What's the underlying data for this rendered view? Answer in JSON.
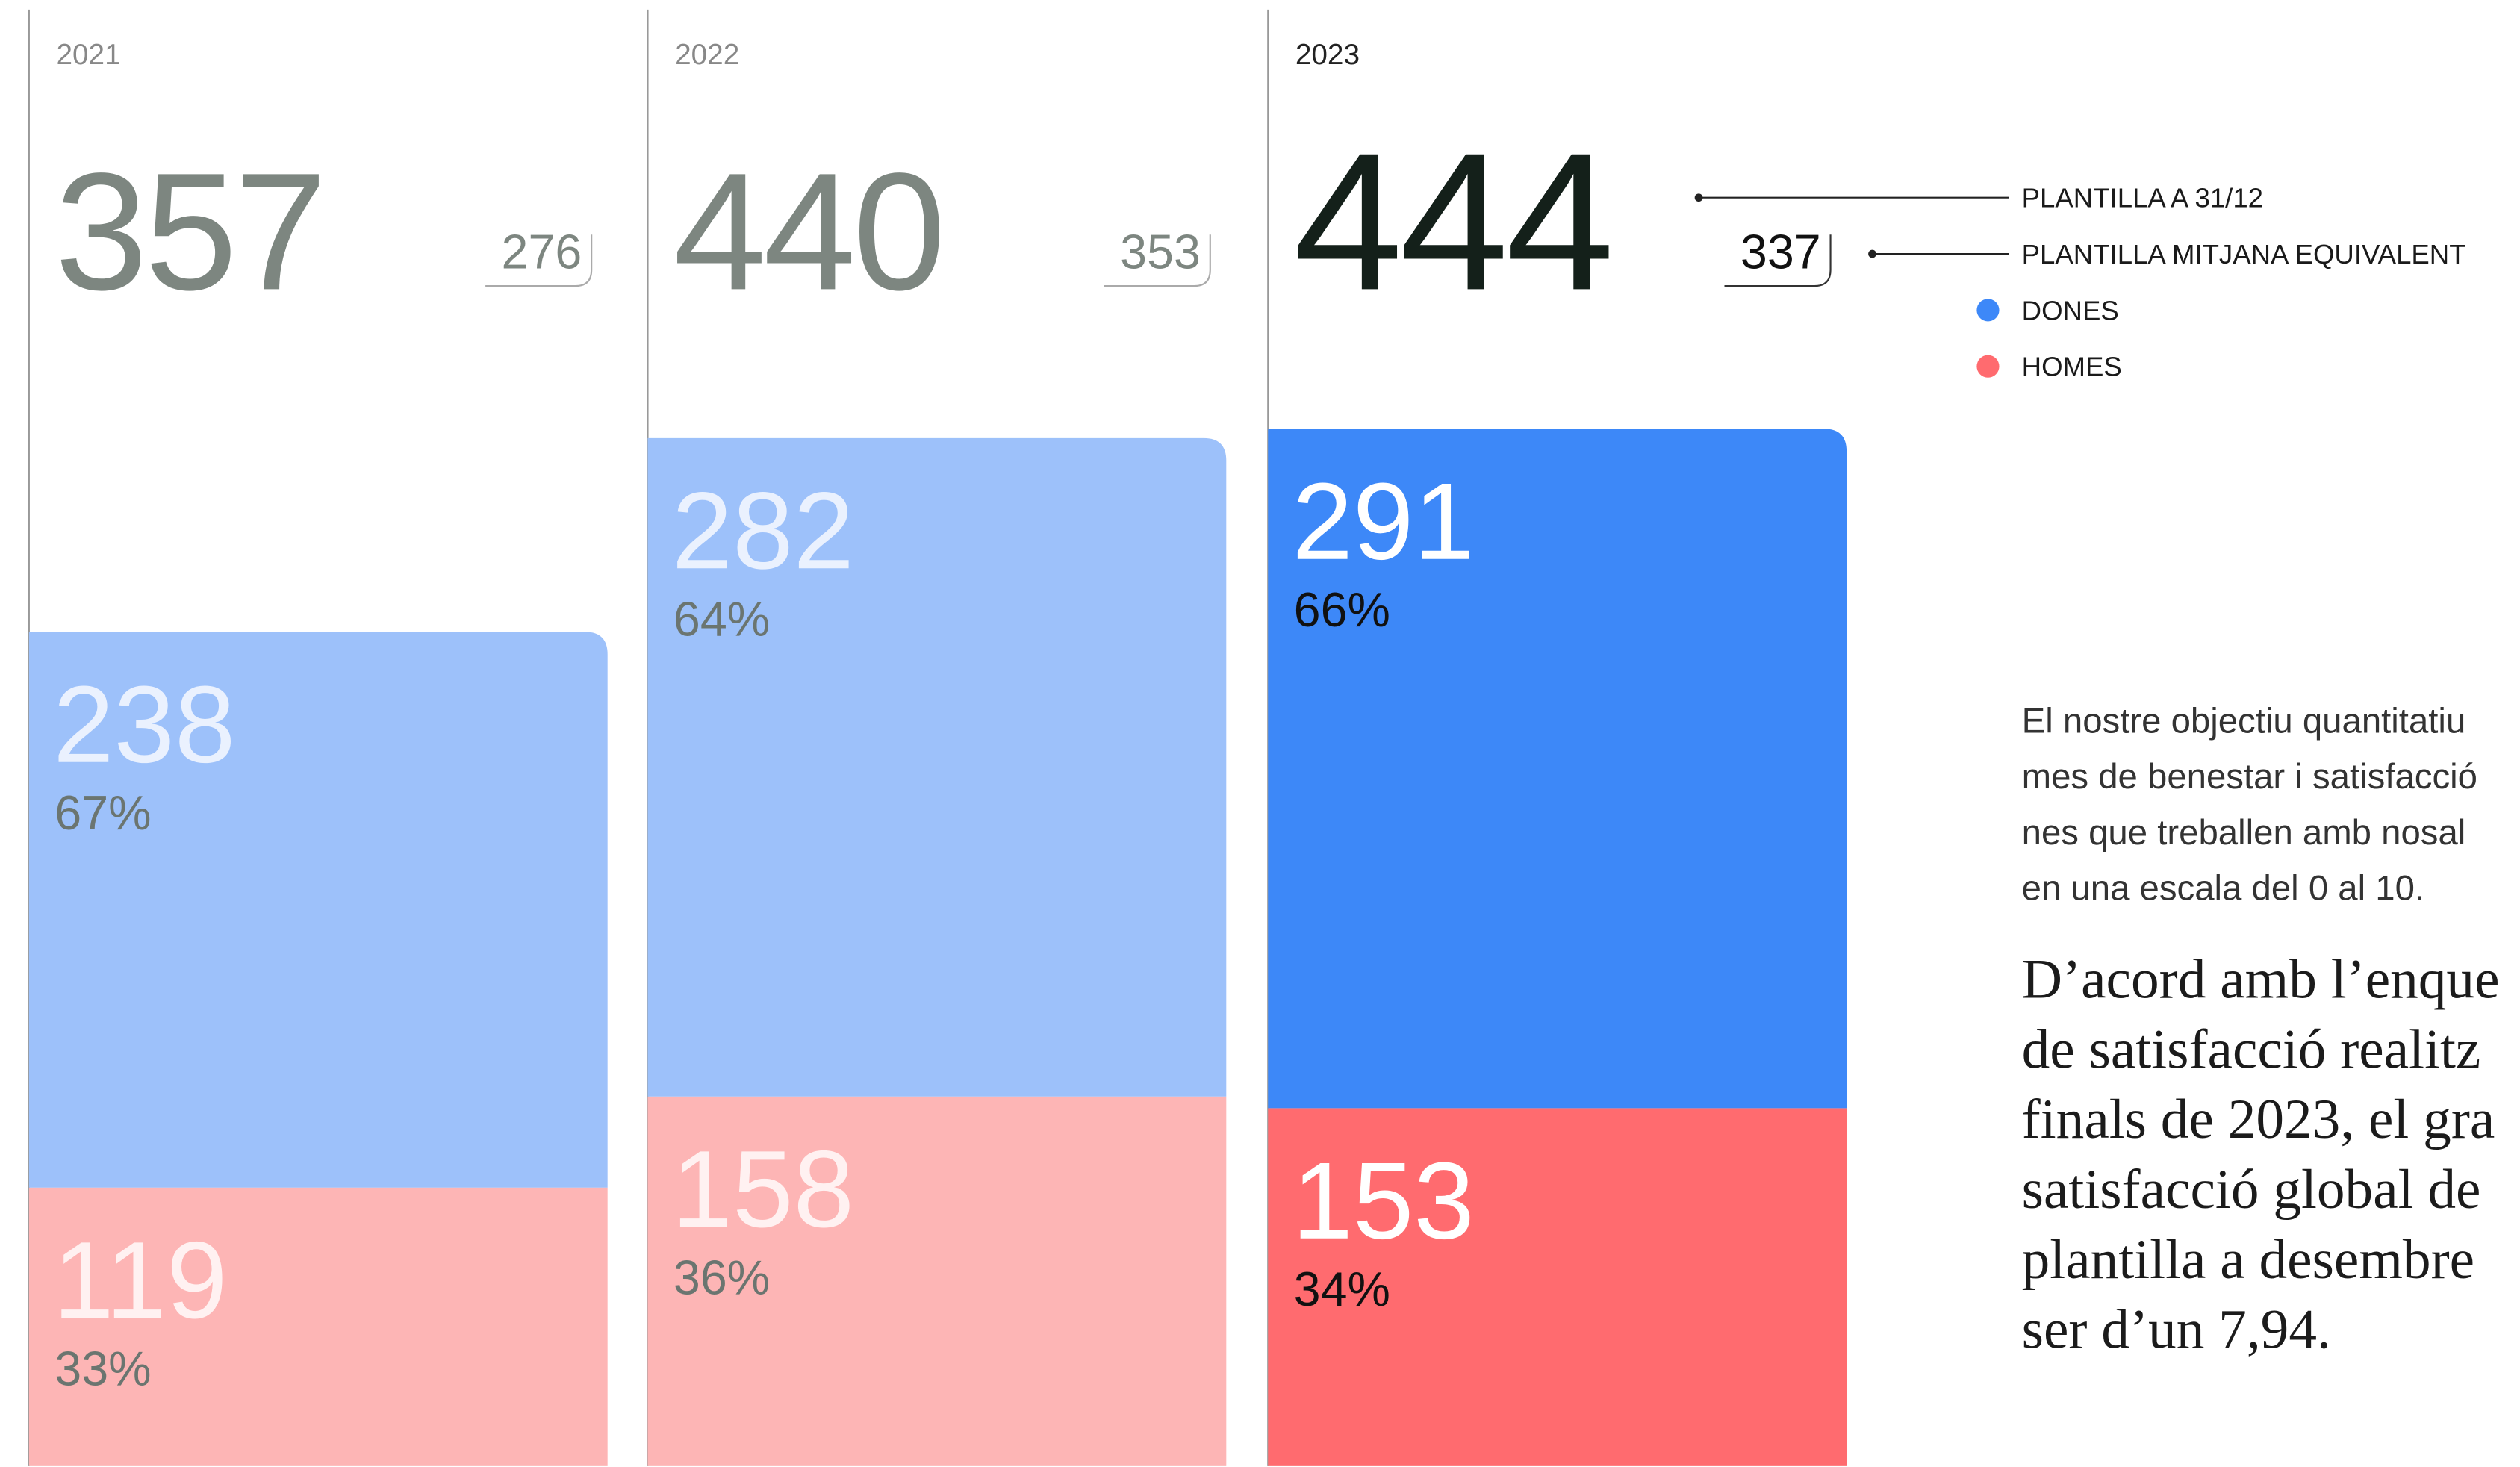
{
  "chart_data": {
    "type": "stacked-bar",
    "categories": [
      "2021",
      "2022",
      "2023"
    ],
    "highlight": 2,
    "totals": [
      357,
      440,
      444
    ],
    "average_staff": [
      276,
      353,
      337
    ],
    "totals_label": "PLANTILLA A 31/12",
    "average_staff_label": "PLANTILLA MITJANA EQUIVALENT",
    "series": [
      {
        "name": "DONES",
        "color": "#3d88f8",
        "faded_color": "#9dc1fa",
        "values": [
          238,
          282,
          291
        ],
        "percent_labels": [
          "67%",
          "64%",
          "66%"
        ]
      },
      {
        "name": "HOMES",
        "color": "#ff6b6f",
        "faded_color": "#fdb5b5",
        "values": [
          119,
          158,
          153
        ],
        "percent_labels": [
          "33%",
          "36%",
          "34%"
        ]
      }
    ]
  },
  "text": {
    "intro": [
      "El nostre objectiu quantitatiu",
      "mes de benestar i satisfacció",
      "nes que treballen amb nosal",
      "en una escala del 0 al 10."
    ],
    "quote": [
      "D’acord amb l’enque",
      "de satisfacció realitz",
      "finals de 2023, el gra",
      "satisfacció global de",
      "plantilla a desembre",
      "ser d’un 7,94."
    ]
  }
}
